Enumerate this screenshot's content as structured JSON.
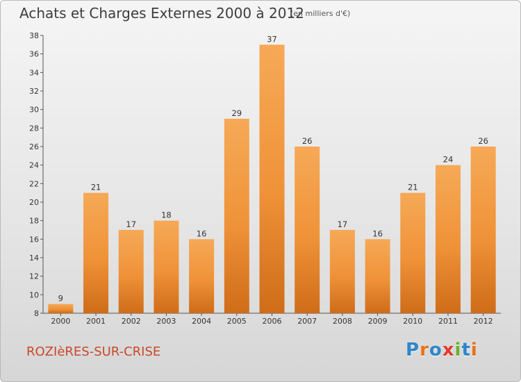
{
  "header": {
    "title": "Achats et Charges Externes 2000 à 2012",
    "subtitle": "(en milliers d'€)"
  },
  "footer": {
    "commune": "ROZIèRES-SUR-CRISE",
    "logo_letters": [
      "P",
      "r",
      "o",
      "x",
      "i",
      "t",
      "i"
    ],
    "logo_colors": [
      "#2e86c8",
      "#e8711a",
      "#2e86c8",
      "#e23a2c",
      "#6ab033",
      "#2e86c8",
      "#e8711a"
    ]
  },
  "chart_data": {
    "type": "bar",
    "categories": [
      "2000",
      "2001",
      "2002",
      "2003",
      "2004",
      "2005",
      "2006",
      "2007",
      "2008",
      "2009",
      "2010",
      "2011",
      "2012"
    ],
    "values": [
      9,
      21,
      17,
      18,
      16,
      29,
      37,
      26,
      17,
      16,
      21,
      24,
      26
    ],
    "title": "Achats et Charges Externes 2000 à 2012",
    "xlabel": "",
    "ylabel": "",
    "ylim": [
      8,
      38
    ],
    "yticks": [
      8,
      10,
      12,
      14,
      16,
      18,
      20,
      22,
      24,
      26,
      28,
      30,
      32,
      34,
      36,
      38
    ],
    "grid": false,
    "bar_color": "#f29d45"
  }
}
